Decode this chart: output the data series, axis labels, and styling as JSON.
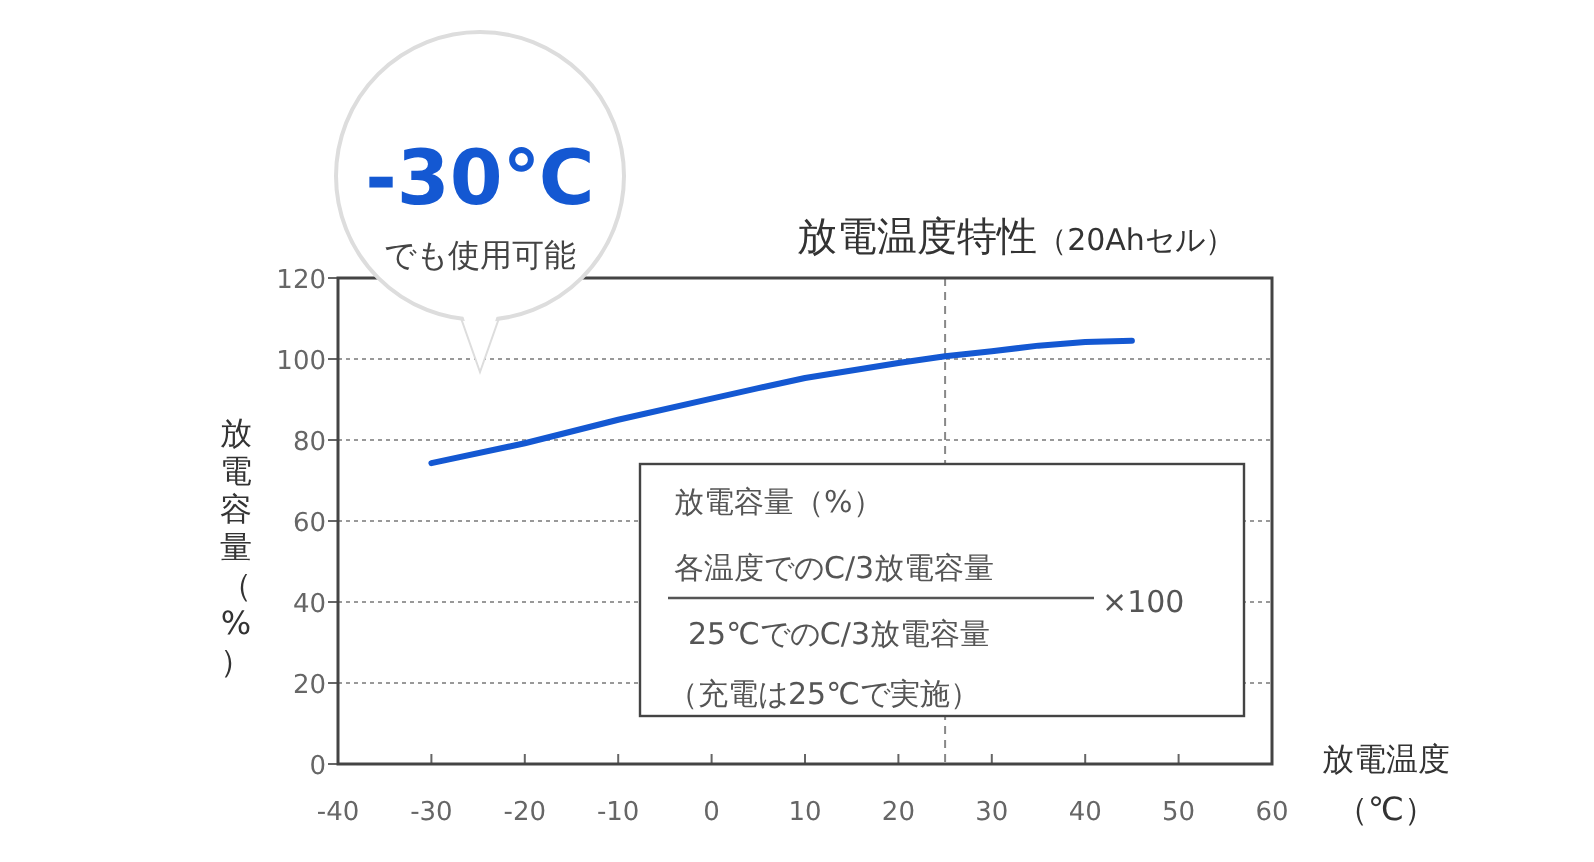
{
  "chart_data": {
    "type": "line",
    "title": "放電温度特性（20Ahセル）",
    "xlabel": "放電温度（℃）",
    "ylabel": "放電容量（%）",
    "x": [
      -30,
      -20,
      -10,
      0,
      5,
      10,
      20,
      25,
      30,
      35,
      40,
      45
    ],
    "series": [
      {
        "color": "#1458d2",
        "values": [
          74.3,
          79.2,
          85,
          90.2,
          92.8,
          95.3,
          99,
          100.7,
          101.9,
          103.3,
          104.2,
          104.5
        ]
      }
    ],
    "xlim": [
      -40,
      60
    ],
    "xticks": [
      -40,
      -30,
      -20,
      -10,
      0,
      10,
      20,
      30,
      40,
      50,
      60
    ],
    "ylim": [
      0,
      120
    ],
    "yticks": [
      0,
      20,
      40,
      60,
      80,
      100,
      120
    ],
    "grid": "y",
    "marker": "none",
    "line_style": "solid",
    "ref_lines": [
      {
        "axis": "x",
        "value": 25,
        "line_style": "dashed",
        "color": "#888888"
      }
    ],
    "annotations": [
      "-30℃",
      "でも使用可能",
      "放電容量（%）",
      "各温度でのC/3放電容量",
      "25℃でのC/3放電容量",
      "×100",
      "（充電は25℃で実施）"
    ]
  }
}
